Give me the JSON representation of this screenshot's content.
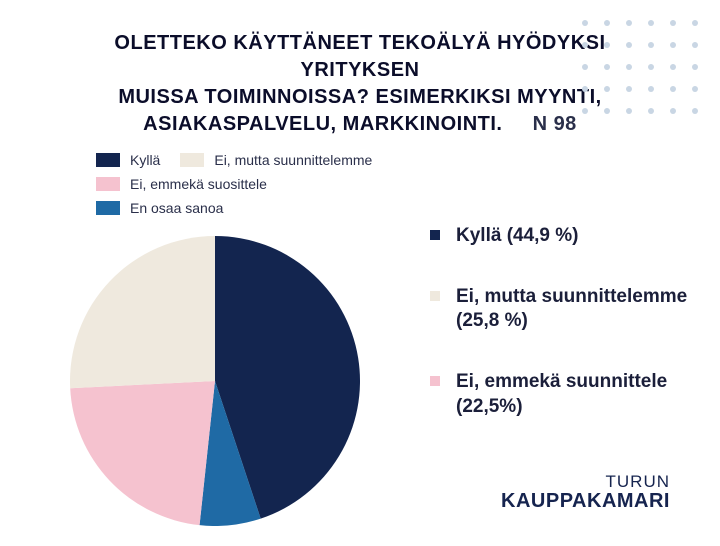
{
  "background_color": "#ffffff",
  "dot_grid": {
    "color": "#c9d6e4",
    "rows": 5,
    "cols": 6
  },
  "title": {
    "line1": "OLETTEKO KÄYTTÄNEET TEKOÄLYÄ HYÖDYKSI YRITYKSEN",
    "line2": "MUISSA TOIMINNOISSA? ESIMERKIKSI MYYNTI,",
    "line3": "ASIAKASPALVELU, MARKKINOINTI.",
    "n_label": "N 98",
    "fontsize": 20,
    "color": "#0b0d2a"
  },
  "legend_top": {
    "fontsize": 14,
    "items": [
      {
        "label": "Kyllä",
        "color": "#13254f"
      },
      {
        "label": "Ei, mutta suunnittelemme",
        "color": "#efe9de"
      },
      {
        "label": "Ei, emmekä suosittele",
        "color": "#f5c2cf"
      },
      {
        "label": "En osaa sanoa",
        "color": "#1f6aa5"
      }
    ]
  },
  "pie": {
    "type": "pie",
    "diameter": 290,
    "start_angle_deg": 0,
    "clockwise": true,
    "slices": [
      {
        "label": "Kyllä",
        "value": 44.9,
        "color": "#13254f"
      },
      {
        "label": "En osaa sanoa",
        "value": 6.8,
        "color": "#1f6aa5"
      },
      {
        "label": "Ei, emmekä suunnittele",
        "value": 22.5,
        "color": "#f5c2cf"
      },
      {
        "label": "Ei, mutta suunnittelemme",
        "value": 25.8,
        "color": "#efe9de"
      }
    ]
  },
  "side_list": {
    "fontsize": 19,
    "items": [
      {
        "label": "Kyllä (44,9 %)",
        "color": "#13254f"
      },
      {
        "label": "Ei, mutta suunnittelemme (25,8 %)",
        "color": "#efe9de"
      },
      {
        "label": "Ei, emmekä suunnittele (22,5%)",
        "color": "#f5c2cf"
      }
    ]
  },
  "logo": {
    "line1": "TURUN",
    "line2": "KAUPPAKAMARI",
    "color": "#16244f",
    "fontsize1": 17,
    "fontsize2": 20
  }
}
